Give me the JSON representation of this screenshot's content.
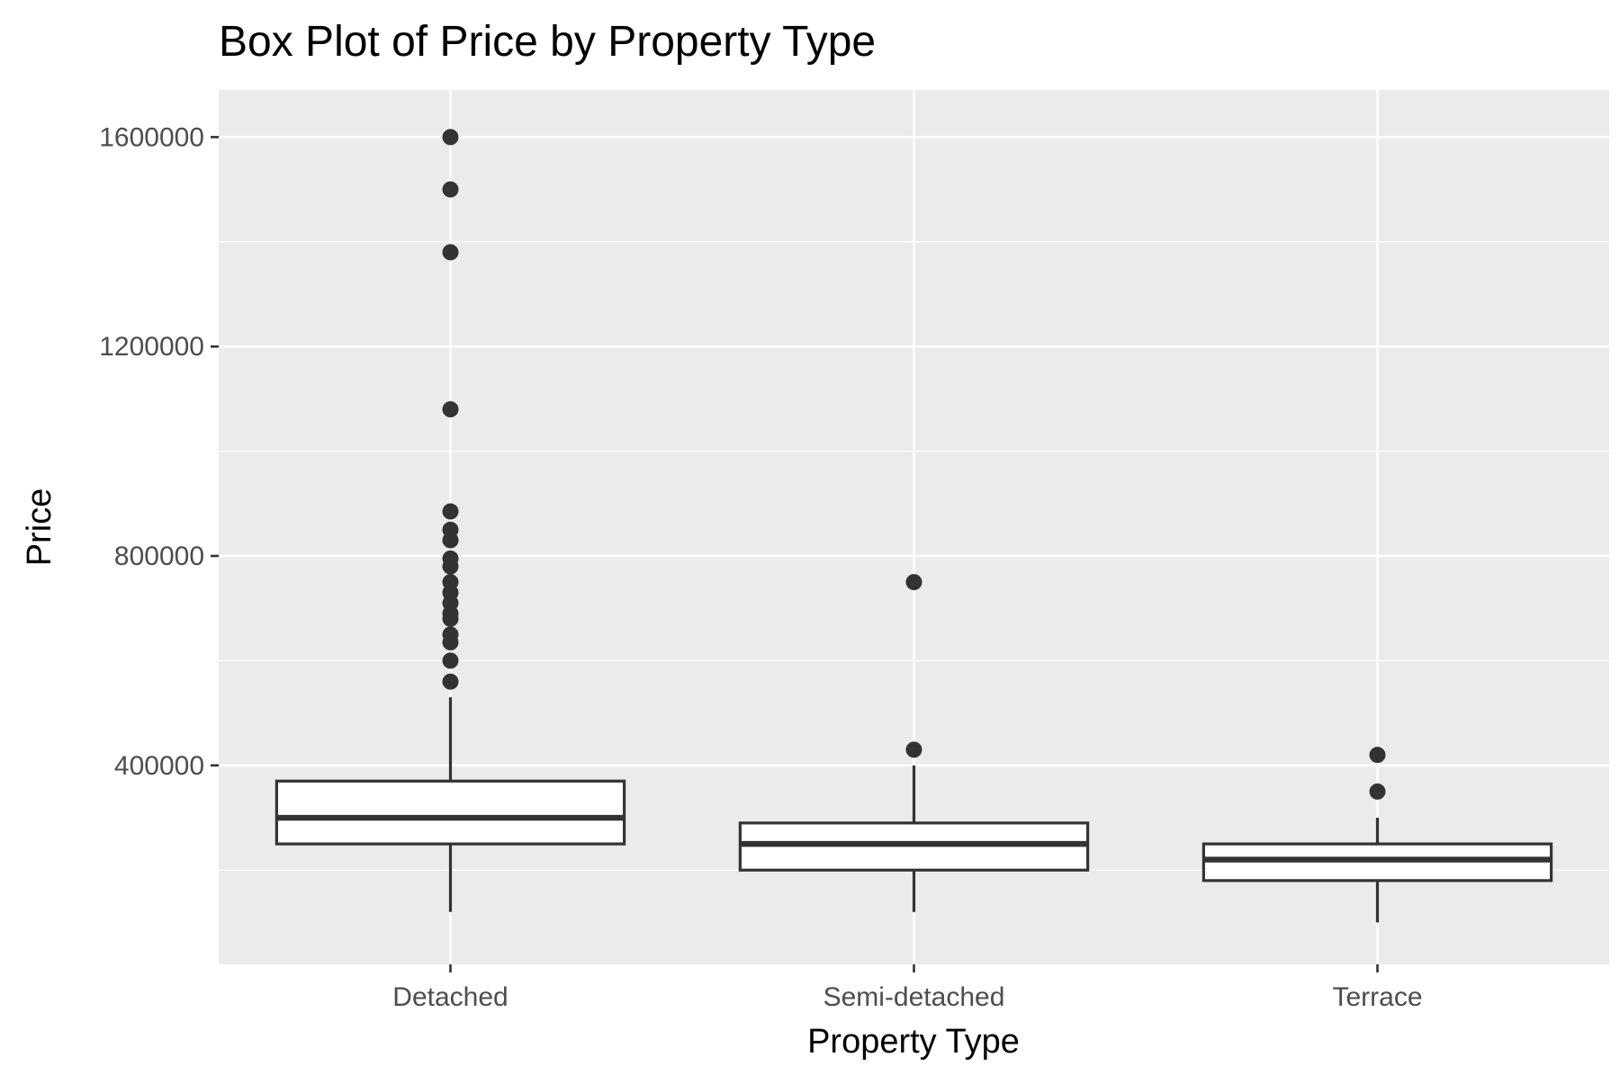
{
  "chart_data": {
    "type": "box",
    "title": "Box Plot of Price by Property Type",
    "xlabel": "Property Type",
    "ylabel": "Price",
    "ylim": [
      20000,
      1690000
    ],
    "y_ticks": [
      400000,
      800000,
      1200000,
      1600000
    ],
    "y_tick_labels": [
      "400000",
      "800000",
      "1200000",
      "1600000"
    ],
    "categories": [
      "Detached",
      "Semi-detached",
      "Terrace"
    ],
    "grid": true,
    "legend": "none",
    "colors": {
      "panel": "#ebebeb",
      "grid": "#ffffff",
      "box_fill": "#ffffff",
      "box_line": "#333333"
    },
    "boxes": [
      {
        "category": "Detached",
        "whisker_low": 120000,
        "q1": 250000,
        "median": 300000,
        "q3": 370000,
        "whisker_high": 530000,
        "outliers": [
          560000,
          600000,
          635000,
          650000,
          680000,
          690000,
          710000,
          730000,
          750000,
          780000,
          795000,
          830000,
          850000,
          885000,
          1080000,
          1380000,
          1500000,
          1600000
        ]
      },
      {
        "category": "Semi-detached",
        "whisker_low": 120000,
        "q1": 200000,
        "median": 250000,
        "q3": 290000,
        "whisker_high": 400000,
        "outliers": [
          430000,
          750000
        ]
      },
      {
        "category": "Terrace",
        "whisker_low": 100000,
        "q1": 180000,
        "median": 220000,
        "q3": 250000,
        "whisker_high": 300000,
        "outliers": [
          350000,
          420000
        ]
      }
    ]
  }
}
